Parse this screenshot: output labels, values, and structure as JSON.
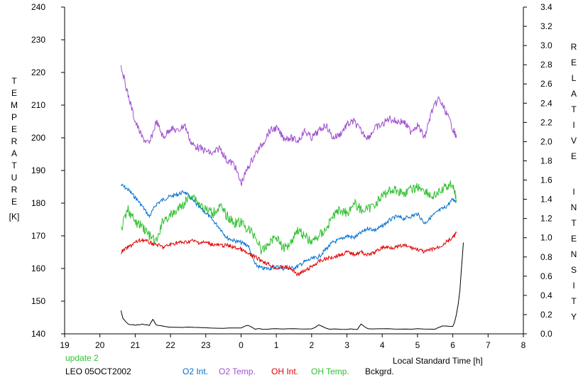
{
  "chart_data": {
    "type": "line",
    "title": "",
    "xlabel": "Local Standard Time [h]",
    "ylabel_left": [
      "T",
      "E",
      "M",
      "P",
      "E",
      "R",
      "A",
      "T",
      "U",
      "R",
      "E",
      "",
      "[K]"
    ],
    "ylabel_right": [
      "R",
      "E",
      "L",
      "A",
      "T",
      "I",
      "V",
      "E",
      "",
      "I",
      "N",
      "T",
      "E",
      "N",
      "S",
      "I",
      "T",
      "Y"
    ],
    "xlim": [
      19,
      32
    ],
    "ylim_left": [
      140,
      240
    ],
    "ylim_right": [
      0,
      3.4
    ],
    "x_tick_labels": [
      "19",
      "20",
      "21",
      "22",
      "23",
      "0",
      "1",
      "2",
      "3",
      "4",
      "5",
      "6",
      "7",
      "8"
    ],
    "y_left_tick_labels": [
      "140",
      "150",
      "160",
      "170",
      "180",
      "190",
      "200",
      "210",
      "220",
      "230",
      "240"
    ],
    "y_right_tick_labels": [
      "0.0",
      "0.2",
      "0.4",
      "0.6",
      "0.8",
      "1.0",
      "1.2",
      "1.4",
      "1.6",
      "1.8",
      "2.0",
      "2.2",
      "2.4",
      "2.6",
      "2.8",
      "3.0",
      "3.2",
      "3.4"
    ],
    "grid": false,
    "footer": {
      "update": "update 2",
      "station": "LEO 05OCT2002"
    },
    "colors": {
      "o2_int": "#0070d0",
      "o2_temp": "#a050d0",
      "oh_int": "#e00000",
      "oh_temp": "#30c030",
      "bckgrd": "#000000",
      "update": "#30c030",
      "axis": "#000000"
    },
    "series": [
      {
        "name": "O2 Int.",
        "axis": "right",
        "x": [
          20.6,
          20.8,
          21.0,
          21.2,
          21.4,
          21.6,
          21.8,
          22.0,
          22.2,
          22.4,
          22.6,
          22.8,
          23.0,
          23.2,
          23.4,
          23.6,
          23.8,
          24.0,
          24.2,
          24.4,
          24.6,
          24.8,
          25.0,
          25.2,
          25.4,
          25.6,
          25.8,
          26.0,
          26.2,
          26.4,
          26.6,
          26.8,
          27.0,
          27.2,
          27.4,
          27.6,
          27.8,
          28.0,
          28.2,
          28.4,
          28.6,
          28.8,
          29.0,
          29.2,
          29.4,
          29.6,
          29.8,
          30.0,
          30.1
        ],
        "y": [
          1.55,
          1.5,
          1.42,
          1.33,
          1.22,
          1.35,
          1.4,
          1.43,
          1.45,
          1.48,
          1.4,
          1.32,
          1.26,
          1.18,
          1.1,
          1.0,
          0.97,
          0.95,
          0.92,
          0.72,
          0.68,
          0.68,
          0.7,
          0.68,
          0.68,
          0.7,
          0.75,
          0.78,
          0.8,
          0.88,
          0.95,
          0.98,
          1.02,
          1.0,
          1.05,
          1.1,
          1.08,
          1.12,
          1.18,
          1.22,
          1.2,
          1.22,
          1.25,
          1.15,
          1.22,
          1.28,
          1.32,
          1.4,
          1.38
        ]
      },
      {
        "name": "O2 Temp.",
        "axis": "left",
        "x": [
          20.6,
          20.8,
          21.0,
          21.2,
          21.4,
          21.6,
          21.8,
          22.0,
          22.2,
          22.4,
          22.6,
          22.8,
          23.0,
          23.2,
          23.4,
          23.6,
          23.8,
          24.0,
          24.2,
          24.4,
          24.6,
          24.8,
          25.0,
          25.2,
          25.4,
          25.6,
          25.8,
          26.0,
          26.2,
          26.4,
          26.6,
          26.8,
          27.0,
          27.2,
          27.4,
          27.6,
          27.8,
          28.0,
          28.2,
          28.4,
          28.6,
          28.8,
          29.0,
          29.2,
          29.4,
          29.6,
          29.8,
          30.0,
          30.1
        ],
        "y": [
          222,
          213,
          205,
          200,
          198,
          205,
          200,
          203,
          202,
          204,
          198,
          197,
          196,
          195,
          197,
          193,
          192,
          186,
          191,
          195,
          198,
          202,
          203,
          200,
          200,
          199,
          202,
          200,
          202,
          204,
          200,
          201,
          204,
          205,
          202,
          200,
          203,
          204,
          206,
          205,
          205,
          202,
          204,
          200,
          208,
          212,
          208,
          203,
          200
        ]
      },
      {
        "name": "OH Int.",
        "axis": "right",
        "x": [
          20.6,
          20.8,
          21.0,
          21.2,
          21.4,
          21.6,
          21.8,
          22.0,
          22.2,
          22.4,
          22.6,
          22.8,
          23.0,
          23.2,
          23.4,
          23.6,
          23.8,
          24.0,
          24.2,
          24.4,
          24.6,
          24.8,
          25.0,
          25.2,
          25.4,
          25.6,
          25.8,
          26.0,
          26.2,
          26.4,
          26.6,
          26.8,
          27.0,
          27.2,
          27.4,
          27.6,
          27.8,
          28.0,
          28.2,
          28.4,
          28.6,
          28.8,
          29.0,
          29.2,
          29.4,
          29.6,
          29.8,
          30.0,
          30.1
        ],
        "y": [
          0.85,
          0.9,
          0.95,
          0.98,
          0.95,
          0.93,
          0.9,
          0.93,
          0.95,
          0.95,
          0.97,
          0.95,
          0.95,
          0.93,
          0.92,
          0.92,
          0.9,
          0.88,
          0.83,
          0.8,
          0.76,
          0.72,
          0.68,
          0.7,
          0.68,
          0.62,
          0.65,
          0.7,
          0.75,
          0.78,
          0.8,
          0.82,
          0.85,
          0.83,
          0.85,
          0.82,
          0.85,
          0.9,
          0.9,
          0.9,
          0.92,
          0.9,
          0.88,
          0.85,
          0.88,
          0.9,
          0.95,
          1.0,
          1.05
        ]
      },
      {
        "name": "OH Temp.",
        "axis": "left",
        "x": [
          20.6,
          20.8,
          21.0,
          21.2,
          21.4,
          21.6,
          21.8,
          22.0,
          22.2,
          22.4,
          22.6,
          22.8,
          23.0,
          23.2,
          23.4,
          23.6,
          23.8,
          24.0,
          24.2,
          24.4,
          24.6,
          24.8,
          25.0,
          25.2,
          25.4,
          25.6,
          25.8,
          26.0,
          26.2,
          26.4,
          26.6,
          26.8,
          27.0,
          27.2,
          27.4,
          27.6,
          27.8,
          28.0,
          28.2,
          28.4,
          28.6,
          28.8,
          29.0,
          29.2,
          29.4,
          29.6,
          29.8,
          30.0,
          30.1
        ],
        "y": [
          172,
          178,
          174,
          173,
          170,
          168,
          175,
          176,
          178,
          180,
          183,
          180,
          178,
          177,
          179,
          176,
          174,
          174,
          172,
          170,
          165,
          168,
          170,
          166,
          168,
          172,
          170,
          168,
          170,
          172,
          176,
          178,
          177,
          180,
          178,
          178,
          180,
          182,
          184,
          184,
          183,
          184,
          185,
          184,
          182,
          183,
          185,
          186,
          181
        ]
      },
      {
        "name": "Bckgrd.",
        "axis": "right",
        "x": [
          20.6,
          20.65,
          20.8,
          21.0,
          21.2,
          21.4,
          21.5,
          21.6,
          21.8,
          22.0,
          22.5,
          23.0,
          23.5,
          24.0,
          24.2,
          24.4,
          24.6,
          25.0,
          25.5,
          26.0,
          26.2,
          26.5,
          27.0,
          27.3,
          27.4,
          27.6,
          28.0,
          28.5,
          29.0,
          29.5,
          29.7,
          30.0,
          30.05,
          30.1,
          30.15,
          30.2,
          30.25,
          30.3
        ],
        "y": [
          0.24,
          0.16,
          0.1,
          0.09,
          0.1,
          0.09,
          0.15,
          0.09,
          0.08,
          0.07,
          0.07,
          0.06,
          0.06,
          0.06,
          0.09,
          0.05,
          0.05,
          0.05,
          0.05,
          0.05,
          0.09,
          0.05,
          0.05,
          0.05,
          0.1,
          0.05,
          0.05,
          0.05,
          0.05,
          0.05,
          0.08,
          0.08,
          0.12,
          0.2,
          0.3,
          0.45,
          0.7,
          0.95
        ]
      }
    ]
  }
}
